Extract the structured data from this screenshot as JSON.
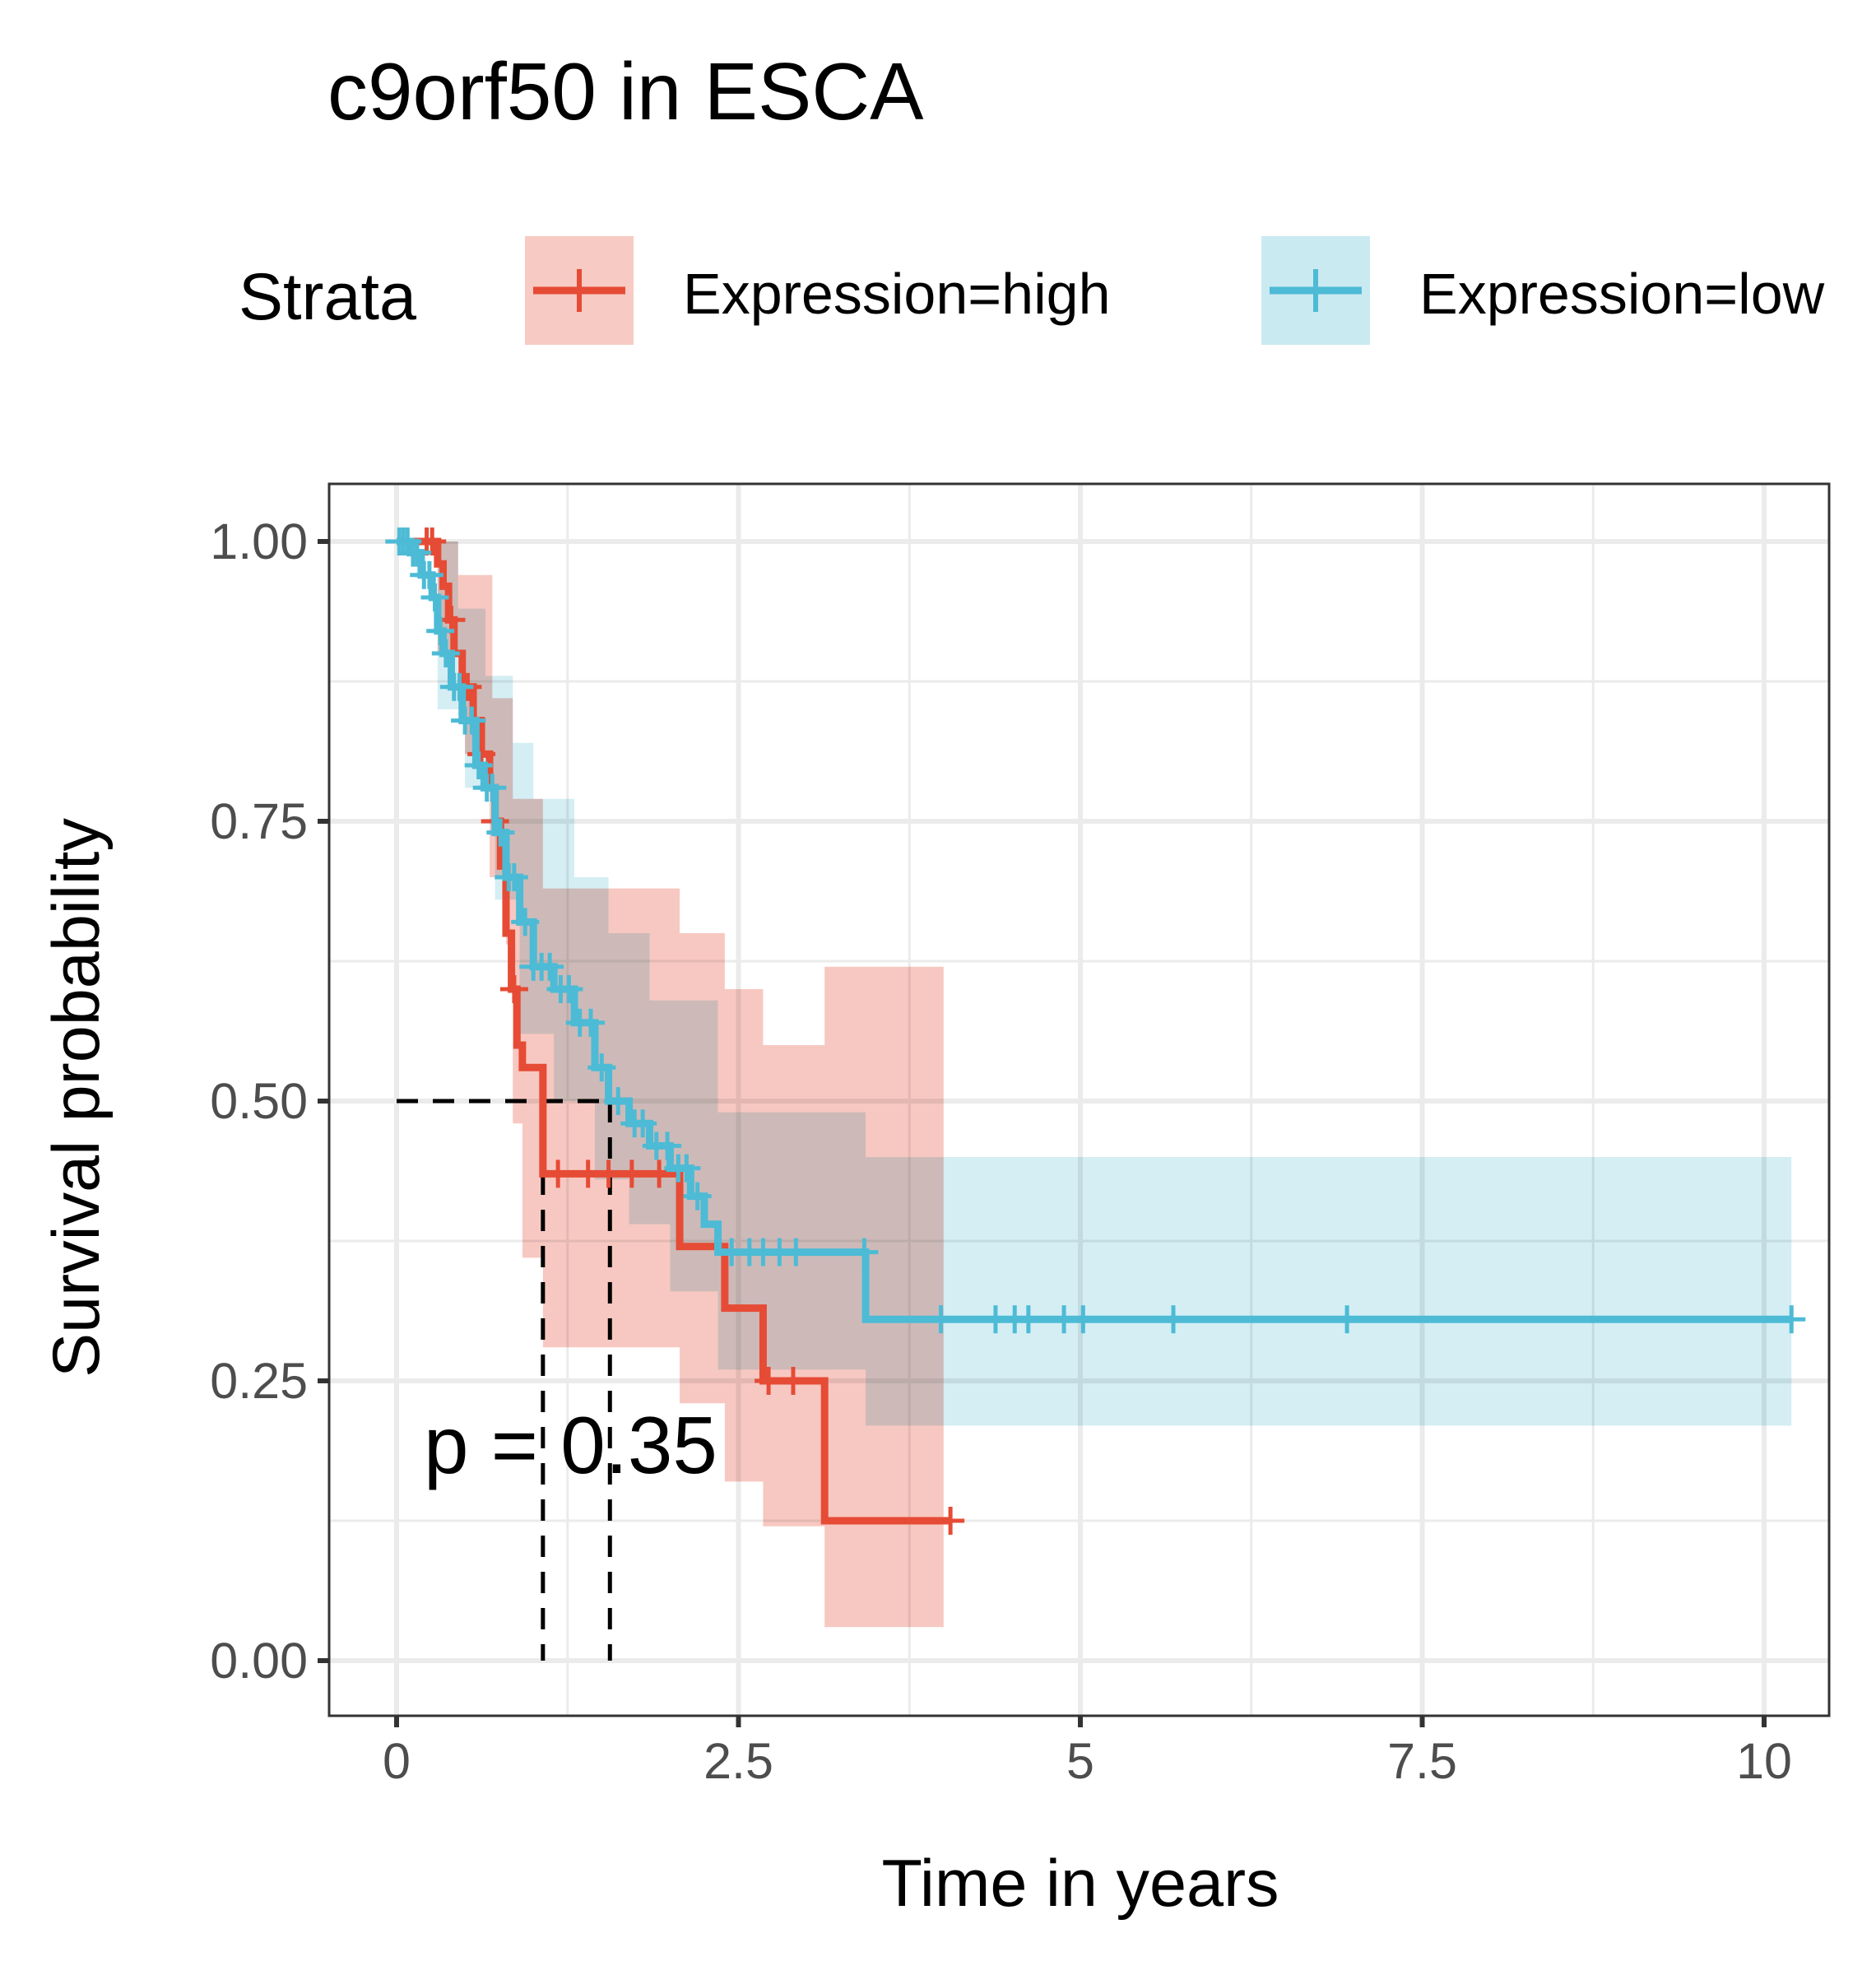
{
  "chart_data": {
    "type": "line",
    "subtype": "kaplan-meier",
    "title": "c9orf50 in ESCA",
    "xlabel": "Time in years",
    "ylabel": "Survival probability",
    "xlim": [
      -0.25,
      10.25
    ],
    "ylim": [
      -0.05,
      1.05
    ],
    "x_ticks": [
      0,
      2.5,
      5,
      7.5,
      10
    ],
    "x_tick_labels": [
      "0",
      "2.5",
      "5",
      "7.5",
      "10"
    ],
    "y_ticks": [
      0,
      0.25,
      0.5,
      0.75,
      1.0
    ],
    "y_tick_labels": [
      "0.00",
      "0.25",
      "0.50",
      "0.75",
      "1.00"
    ],
    "grid": true,
    "legend": {
      "title": "Strata",
      "position": "top",
      "entries": [
        "Expression=high",
        "Expression=low"
      ]
    },
    "annotation": {
      "text": "p = 0.35",
      "x": 0.2,
      "y": 0.2
    },
    "median_lines": [
      {
        "series": "Expression=high",
        "x": 1.07,
        "y": 0.5
      },
      {
        "series": "Expression=low",
        "x": 1.56,
        "y": 0.5
      }
    ],
    "series": [
      {
        "name": "Expression=high",
        "color": "#E64B35",
        "ci_color": "#F4B3A9",
        "steps": [
          [
            0,
            1.0
          ],
          [
            0.3,
            1.0
          ],
          [
            0.3,
            0.98
          ],
          [
            0.34,
            0.98
          ],
          [
            0.34,
            0.96
          ],
          [
            0.38,
            0.96
          ],
          [
            0.38,
            0.93
          ],
          [
            0.42,
            0.93
          ],
          [
            0.42,
            0.9
          ],
          [
            0.48,
            0.9
          ],
          [
            0.48,
            0.87
          ],
          [
            0.56,
            0.87
          ],
          [
            0.56,
            0.84
          ],
          [
            0.62,
            0.84
          ],
          [
            0.62,
            0.81
          ],
          [
            0.68,
            0.81
          ],
          [
            0.68,
            0.78
          ],
          [
            0.72,
            0.78
          ],
          [
            0.72,
            0.75
          ],
          [
            0.76,
            0.75
          ],
          [
            0.76,
            0.71
          ],
          [
            0.8,
            0.71
          ],
          [
            0.8,
            0.65
          ],
          [
            0.84,
            0.65
          ],
          [
            0.84,
            0.6
          ],
          [
            0.88,
            0.6
          ],
          [
            0.88,
            0.55
          ],
          [
            0.92,
            0.55
          ],
          [
            0.92,
            0.53
          ],
          [
            1.07,
            0.53
          ],
          [
            1.07,
            0.435
          ],
          [
            2.07,
            0.435
          ],
          [
            2.07,
            0.37
          ],
          [
            2.4,
            0.37
          ],
          [
            2.4,
            0.315
          ],
          [
            2.68,
            0.315
          ],
          [
            2.68,
            0.25
          ],
          [
            3.13,
            0.25
          ],
          [
            3.13,
            0.125
          ],
          [
            4.05,
            0.125
          ]
        ],
        "ci_upper": [
          [
            0,
            1.0
          ],
          [
            0.45,
            1.0
          ],
          [
            0.45,
            0.97
          ],
          [
            0.7,
            0.97
          ],
          [
            0.7,
            0.86
          ],
          [
            0.85,
            0.86
          ],
          [
            0.85,
            0.77
          ],
          [
            1.07,
            0.77
          ],
          [
            1.07,
            0.69
          ],
          [
            2.07,
            0.69
          ],
          [
            2.07,
            0.65
          ],
          [
            2.4,
            0.65
          ],
          [
            2.4,
            0.6
          ],
          [
            2.68,
            0.6
          ],
          [
            2.68,
            0.55
          ],
          [
            3.13,
            0.55
          ],
          [
            3.13,
            0.62
          ],
          [
            4.0,
            0.62
          ]
        ],
        "ci_lower": [
          [
            0,
            1.0
          ],
          [
            0.3,
            1.0
          ],
          [
            0.3,
            0.9
          ],
          [
            0.5,
            0.9
          ],
          [
            0.5,
            0.81
          ],
          [
            0.68,
            0.81
          ],
          [
            0.68,
            0.7
          ],
          [
            0.8,
            0.7
          ],
          [
            0.8,
            0.64
          ],
          [
            0.85,
            0.64
          ],
          [
            0.85,
            0.48
          ],
          [
            0.92,
            0.48
          ],
          [
            0.92,
            0.36
          ],
          [
            1.07,
            0.36
          ],
          [
            1.07,
            0.28
          ],
          [
            2.07,
            0.28
          ],
          [
            2.07,
            0.23
          ],
          [
            2.4,
            0.23
          ],
          [
            2.4,
            0.16
          ],
          [
            2.68,
            0.16
          ],
          [
            2.68,
            0.12
          ],
          [
            3.13,
            0.12
          ],
          [
            3.13,
            0.03
          ],
          [
            4.0,
            0.03
          ]
        ],
        "censor_times": [
          0.22,
          0.26,
          0.4,
          0.52,
          0.62,
          0.72,
          0.86,
          1.18,
          1.4,
          1.55,
          1.72,
          1.92,
          2.72,
          2.9,
          4.05
        ]
      },
      {
        "name": "Expression=low",
        "color": "#4DBBD5",
        "ci_color": "#C4E8F0",
        "steps": [
          [
            0,
            1.0
          ],
          [
            0.1,
            1.0
          ],
          [
            0.1,
            0.99
          ],
          [
            0.18,
            0.99
          ],
          [
            0.18,
            0.97
          ],
          [
            0.26,
            0.97
          ],
          [
            0.26,
            0.95
          ],
          [
            0.3,
            0.95
          ],
          [
            0.3,
            0.92
          ],
          [
            0.34,
            0.92
          ],
          [
            0.34,
            0.9
          ],
          [
            0.4,
            0.9
          ],
          [
            0.4,
            0.87
          ],
          [
            0.48,
            0.87
          ],
          [
            0.48,
            0.84
          ],
          [
            0.58,
            0.84
          ],
          [
            0.58,
            0.8
          ],
          [
            0.64,
            0.8
          ],
          [
            0.64,
            0.78
          ],
          [
            0.72,
            0.78
          ],
          [
            0.72,
            0.74
          ],
          [
            0.8,
            0.74
          ],
          [
            0.8,
            0.7
          ],
          [
            0.9,
            0.7
          ],
          [
            0.9,
            0.66
          ],
          [
            1.0,
            0.66
          ],
          [
            1.0,
            0.62
          ],
          [
            1.15,
            0.62
          ],
          [
            1.15,
            0.6
          ],
          [
            1.3,
            0.6
          ],
          [
            1.3,
            0.57
          ],
          [
            1.45,
            0.57
          ],
          [
            1.45,
            0.53
          ],
          [
            1.55,
            0.53
          ],
          [
            1.55,
            0.5
          ],
          [
            1.7,
            0.5
          ],
          [
            1.7,
            0.48
          ],
          [
            1.85,
            0.48
          ],
          [
            1.85,
            0.46
          ],
          [
            2.0,
            0.46
          ],
          [
            2.0,
            0.44
          ],
          [
            2.15,
            0.44
          ],
          [
            2.15,
            0.415
          ],
          [
            2.25,
            0.415
          ],
          [
            2.25,
            0.39
          ],
          [
            2.35,
            0.39
          ],
          [
            2.35,
            0.365
          ],
          [
            3.43,
            0.365
          ],
          [
            3.43,
            0.305
          ],
          [
            10.2,
            0.305
          ]
        ],
        "ci_upper": [
          [
            0,
            1.0
          ],
          [
            0.45,
            1.0
          ],
          [
            0.45,
            0.94
          ],
          [
            0.65,
            0.94
          ],
          [
            0.65,
            0.88
          ],
          [
            0.85,
            0.88
          ],
          [
            0.85,
            0.82
          ],
          [
            1.0,
            0.82
          ],
          [
            1.0,
            0.77
          ],
          [
            1.3,
            0.77
          ],
          [
            1.3,
            0.7
          ],
          [
            1.55,
            0.7
          ],
          [
            1.55,
            0.65
          ],
          [
            1.85,
            0.65
          ],
          [
            1.85,
            0.59
          ],
          [
            2.35,
            0.59
          ],
          [
            2.35,
            0.49
          ],
          [
            3.43,
            0.49
          ],
          [
            3.43,
            0.45
          ],
          [
            10.2,
            0.45
          ]
        ],
        "ci_lower": [
          [
            0,
            1.0
          ],
          [
            0.3,
            1.0
          ],
          [
            0.3,
            0.85
          ],
          [
            0.5,
            0.85
          ],
          [
            0.5,
            0.78
          ],
          [
            0.72,
            0.78
          ],
          [
            0.72,
            0.68
          ],
          [
            0.9,
            0.68
          ],
          [
            0.9,
            0.56
          ],
          [
            1.15,
            0.56
          ],
          [
            1.15,
            0.5
          ],
          [
            1.45,
            0.5
          ],
          [
            1.45,
            0.43
          ],
          [
            1.7,
            0.43
          ],
          [
            1.7,
            0.39
          ],
          [
            2.0,
            0.39
          ],
          [
            2.0,
            0.33
          ],
          [
            2.35,
            0.33
          ],
          [
            2.35,
            0.26
          ],
          [
            3.43,
            0.26
          ],
          [
            3.43,
            0.21
          ],
          [
            10.2,
            0.21
          ]
        ],
        "censor_times": [
          0.02,
          0.05,
          0.08,
          0.12,
          0.15,
          0.2,
          0.24,
          0.28,
          0.32,
          0.36,
          0.42,
          0.46,
          0.5,
          0.55,
          0.6,
          0.66,
          0.7,
          0.76,
          0.82,
          0.86,
          0.94,
          1.0,
          1.06,
          1.12,
          1.2,
          1.26,
          1.34,
          1.42,
          1.5,
          1.62,
          1.74,
          1.8,
          1.9,
          1.98,
          2.06,
          2.12,
          2.2,
          2.45,
          2.58,
          2.68,
          2.8,
          2.92,
          3.42,
          3.98,
          4.38,
          4.52,
          4.62,
          4.88,
          5.02,
          5.68,
          6.95,
          10.2
        ]
      }
    ]
  }
}
